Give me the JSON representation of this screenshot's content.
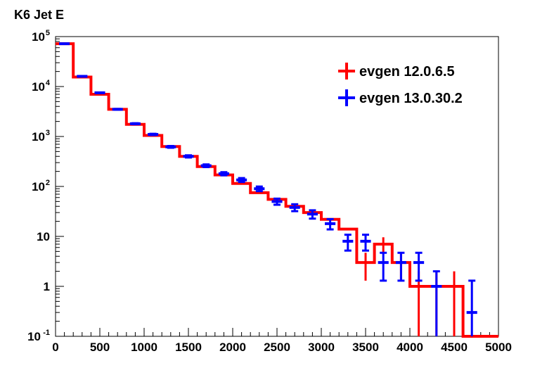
{
  "chart_data": {
    "type": "line",
    "title": "K6 Jet E",
    "xlabel": "",
    "ylabel": "",
    "xlim": [
      0,
      5000
    ],
    "ylim": [
      0.1,
      100000
    ],
    "yscale": "log",
    "grid": false,
    "legend_position": "top-right",
    "bin_width": 200,
    "x_ticks": [
      {
        "label": "0",
        "value": 0
      },
      {
        "label": "500",
        "value": 500
      },
      {
        "label": "1000",
        "value": 1000
      },
      {
        "label": "1500",
        "value": 1500
      },
      {
        "label": "2000",
        "value": 2000
      },
      {
        "label": "2500",
        "value": 2500
      },
      {
        "label": "3000",
        "value": 3000
      },
      {
        "label": "3500",
        "value": 3500
      },
      {
        "label": "4000",
        "value": 4000
      },
      {
        "label": "4500",
        "value": 4500
      },
      {
        "label": "5000",
        "value": 5000
      }
    ],
    "y_ticks": [
      {
        "base": "10",
        "exp": "-1",
        "value": 0.1
      },
      {
        "base": "1",
        "exp": "",
        "value": 1
      },
      {
        "base": "10",
        "exp": "",
        "value": 10
      },
      {
        "base": "10",
        "exp": "2",
        "value": 100
      },
      {
        "base": "10",
        "exp": "3",
        "value": 1000
      },
      {
        "base": "10",
        "exp": "4",
        "value": 10000
      },
      {
        "base": "10",
        "exp": "5",
        "value": 100000
      }
    ],
    "series": [
      {
        "name": "evgen 12.0.6.5",
        "color": "#ff0000",
        "style": "histogram",
        "x": [
          100,
          300,
          500,
          700,
          900,
          1100,
          1300,
          1500,
          1700,
          1900,
          2100,
          2300,
          2500,
          2700,
          2900,
          3100,
          3300,
          3500,
          3700,
          3900,
          4100,
          4300,
          4500,
          4700,
          4900
        ],
        "values": [
          72000,
          15500,
          7000,
          3500,
          1750,
          1050,
          630,
          400,
          250,
          170,
          115,
          75,
          55,
          40,
          30,
          22,
          14,
          3,
          7,
          3,
          1,
          1,
          1,
          0,
          0
        ],
        "errors": [
          0,
          0,
          0,
          0,
          0,
          0,
          0,
          0,
          0,
          0,
          0,
          0,
          0,
          0,
          0,
          0,
          0,
          1.7,
          2.6,
          1.7,
          1,
          1,
          1,
          0,
          0
        ]
      },
      {
        "name": "evgen 13.0.30.2",
        "color": "#0000ff",
        "style": "errorbar",
        "x": [
          100,
          300,
          500,
          700,
          900,
          1100,
          1300,
          1500,
          1700,
          1900,
          2100,
          2300,
          2500,
          2700,
          2900,
          3100,
          3300,
          3500,
          3700,
          3900,
          4100,
          4300,
          4500,
          4700,
          4900
        ],
        "values": [
          72000,
          16000,
          7500,
          3500,
          1800,
          1100,
          620,
          400,
          260,
          180,
          135,
          90,
          50,
          38,
          28,
          18,
          8,
          8,
          3,
          3,
          3,
          1,
          0,
          0.3,
          0
        ],
        "errors": [
          270,
          130,
          90,
          60,
          42,
          33,
          25,
          20,
          16,
          13,
          12,
          9.5,
          7,
          6,
          5.3,
          4.2,
          2.8,
          2.8,
          1.7,
          1.7,
          1.7,
          1,
          0,
          1,
          0
        ]
      }
    ]
  }
}
